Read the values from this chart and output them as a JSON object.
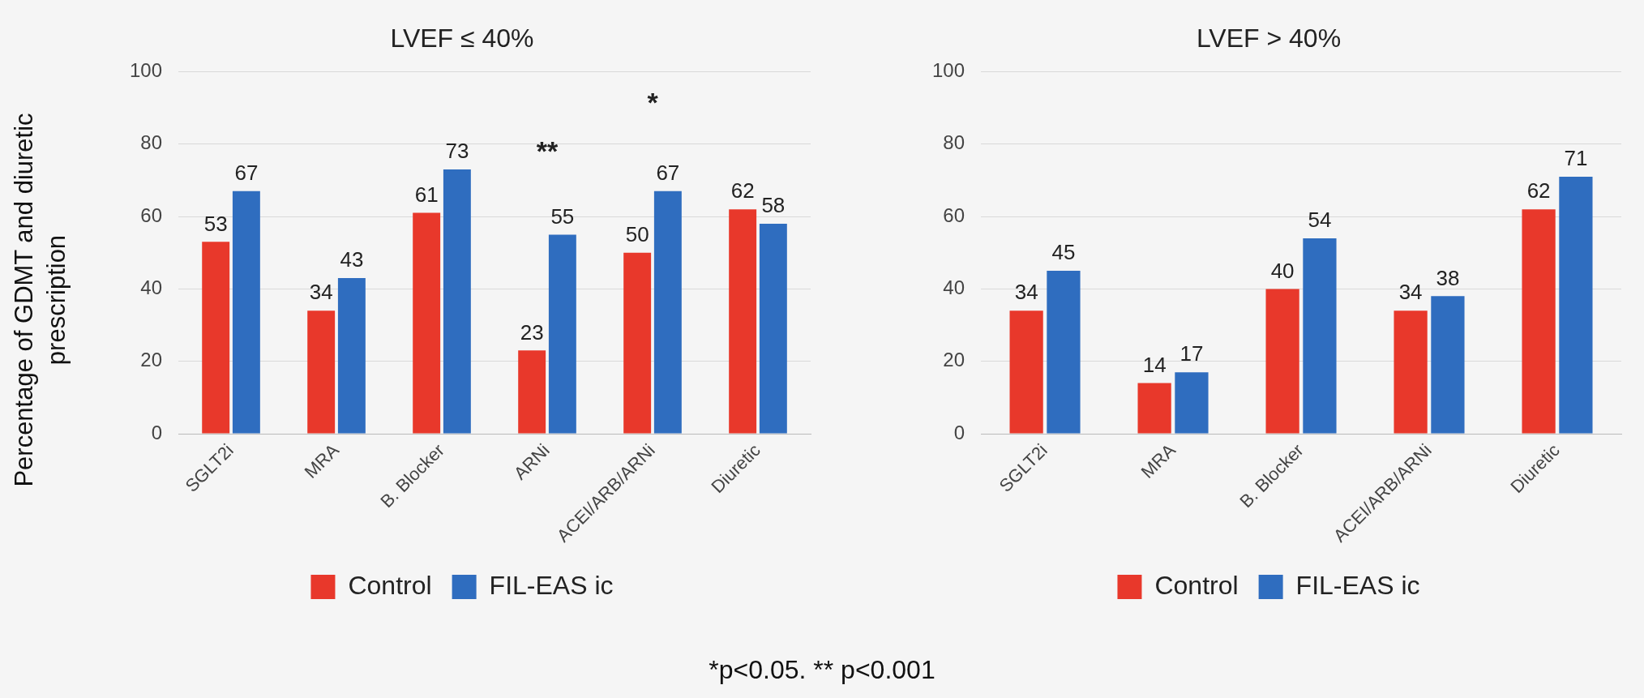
{
  "chart_data": [
    {
      "type": "bar",
      "title": "LVEF ≤ 40%",
      "ylabel": "Percentage of GDMT and diuretic prescription",
      "categories": [
        "SGLT2i",
        "MRA",
        "B. Blocker",
        "ARNi",
        "ACEI/ARB/ARNi",
        "Diuretic"
      ],
      "series": [
        {
          "name": "Control",
          "color": "#e8382b",
          "values": [
            53,
            34,
            61,
            23,
            50,
            62
          ]
        },
        {
          "name": "FIL-EAS ic",
          "color": "#2f6dbf",
          "values": [
            67,
            43,
            73,
            55,
            67,
            58
          ]
        }
      ],
      "ylim": [
        0,
        100
      ],
      "yticks": [
        0,
        20,
        40,
        60,
        80,
        100
      ],
      "grid": "y",
      "legend": "bottom",
      "data_labels": true,
      "annotations": [
        "**",
        "*",
        "*p<0.05. ** p<0.001"
      ]
    },
    {
      "type": "bar",
      "title": "LVEF > 40%",
      "categories": [
        "SGLT2i",
        "MRA",
        "B. Blocker",
        "ACEI/ARB/ARNi",
        "Diuretic"
      ],
      "series": [
        {
          "name": "Control",
          "color": "#e8382b",
          "values": [
            34,
            14,
            40,
            34,
            62
          ]
        },
        {
          "name": "FIL-EAS ic",
          "color": "#2f6dbf",
          "values": [
            45,
            17,
            54,
            38,
            71
          ]
        }
      ],
      "ylim": [
        0,
        100
      ],
      "yticks": [
        0,
        20,
        40,
        60,
        80,
        100
      ],
      "grid": "y",
      "legend": "bottom",
      "data_labels": true
    }
  ]
}
